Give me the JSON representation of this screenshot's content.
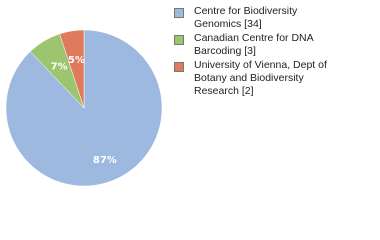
{
  "chart_data": {
    "type": "pie",
    "categories": [
      "Centre for Biodiversity Genomics [34]",
      "Canadian Centre for DNA Barcoding [3]",
      "University of Vienna, Dept of Botany and Biodiversity Research [2]"
    ],
    "values": [
      87,
      7,
      5
    ],
    "value_labels": [
      "87%",
      "7%",
      "5%"
    ],
    "colors": [
      "#9db9e0",
      "#9dc56f",
      "#e07a5c"
    ],
    "legend": "right"
  }
}
